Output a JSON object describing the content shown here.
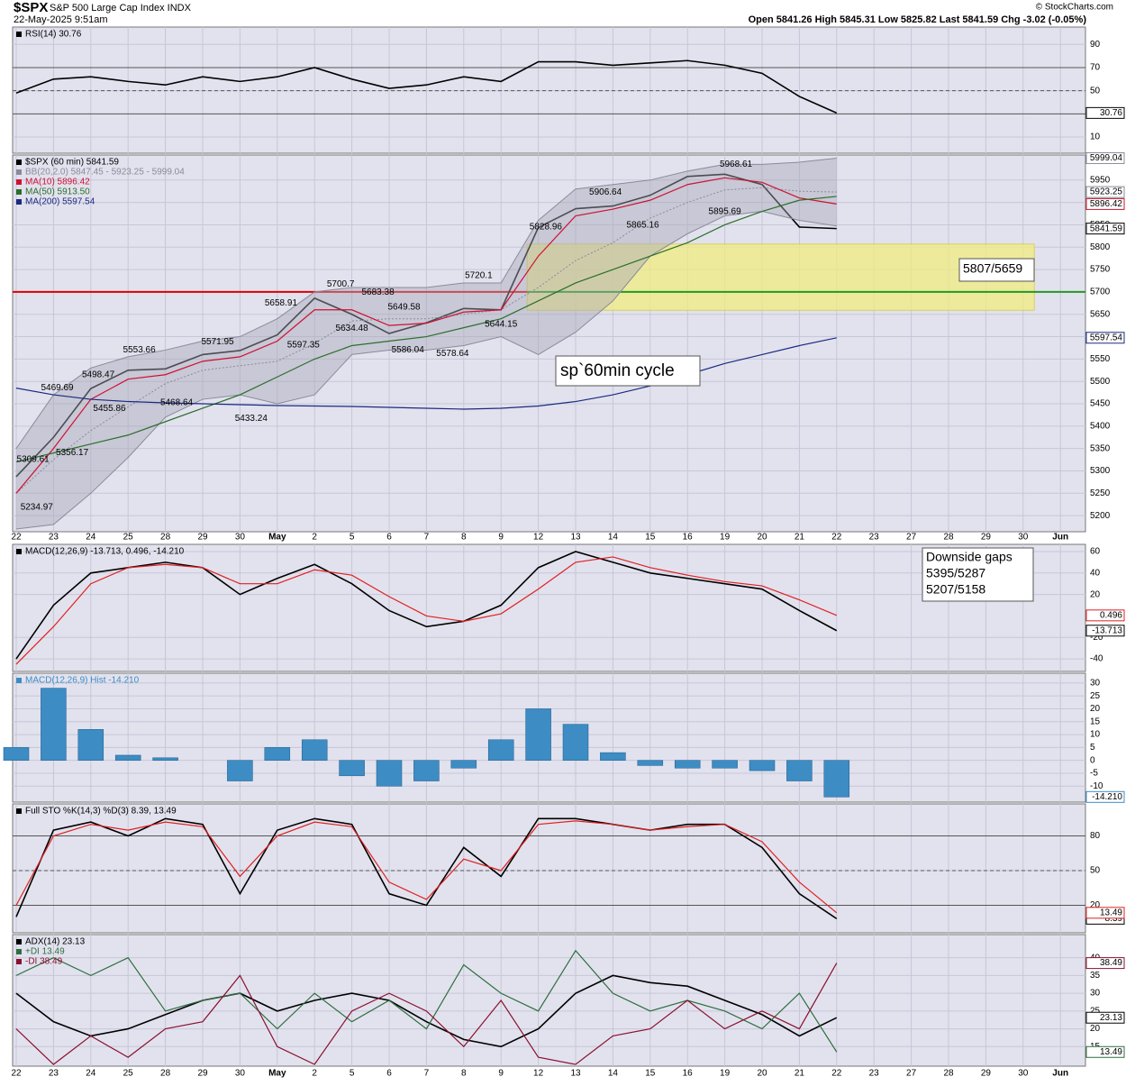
{
  "header": {
    "symbol": "$SPX",
    "name": "S&P 500 Large Cap Index INDX",
    "datetime": "22-May-2025 9:51am",
    "quote": "Open 5841.26 High 5845.31 Low 5825.82 Last 5841.59 Chg -3.02 (-0.05%)",
    "source": "© StockCharts.com"
  },
  "chart_data": [
    {
      "type": "line",
      "ylim": [
        -4,
        105
      ],
      "yticks": [
        10,
        50,
        70,
        90
      ],
      "hlines": [
        30,
        50,
        70
      ],
      "grid": true,
      "series": [
        {
          "name": "RSI(14) 30.76",
          "color": "#000000",
          "last_box": true,
          "values": [
            48,
            60,
            62,
            58,
            55,
            62,
            58,
            62,
            70,
            60,
            52,
            55,
            62,
            58,
            75,
            75,
            72,
            74,
            76,
            72,
            65,
            45,
            30.76,
            null,
            null,
            null,
            null,
            null,
            null
          ]
        }
      ]
    },
    {
      "type": "line",
      "ylim": [
        5164,
        6006
      ],
      "yticks": [
        5200,
        5250,
        5300,
        5350,
        5400,
        5450,
        5500,
        5550,
        5600,
        5650,
        5700,
        5750,
        5800,
        5850,
        5900,
        5950
      ],
      "grid": true,
      "categories": [
        "22",
        "23",
        "24",
        "25",
        "28",
        "29",
        "30",
        "May",
        "2",
        "5",
        "6",
        "7",
        "8",
        "9",
        "12",
        "13",
        "14",
        "15",
        "16",
        "19",
        "20",
        "21",
        "22",
        "23",
        "27",
        "28",
        "29",
        "30",
        "Jun"
      ],
      "hlines": [
        5700
      ],
      "hline_colors": [
        "#dd0000",
        "#229922"
      ],
      "zone": [
        5659,
        5807
      ],
      "zone_color": "#f0ec80",
      "series": [
        {
          "name": "$SPX (60 min) 5841.59",
          "color": "#000000",
          "last_box": true,
          "values": [
            5287,
            5375,
            5484,
            5525,
            5528,
            5560,
            5569,
            5604,
            5686,
            5650,
            5607,
            5631,
            5663,
            5660,
            5844,
            5886,
            5892,
            5916,
            5958,
            5963,
            5940,
            5845,
            5841.59,
            null,
            null,
            null,
            null,
            null,
            null
          ]
        },
        {
          "name": "BB(20,2.0) 5847.45 - 5923.25 - 5999.04",
          "color": "#8a8a9a",
          "last_box": [
            "upper",
            "middle"
          ],
          "upper": [
            5350,
            5470,
            5530,
            5555,
            5570,
            5590,
            5600,
            5640,
            5700,
            5710,
            5710,
            5710,
            5720,
            5720,
            5860,
            5930,
            5940,
            5950,
            5970,
            5985,
            5985,
            5990,
            5999.04,
            null,
            null,
            null,
            null,
            null,
            null
          ],
          "middle": [
            5250,
            5325,
            5390,
            5443,
            5495,
            5525,
            5535,
            5545,
            5585,
            5635,
            5640,
            5640,
            5650,
            5660,
            5710,
            5770,
            5810,
            5865,
            5900,
            5928,
            5933,
            5925,
            5923.25,
            null,
            null,
            null,
            null,
            null,
            null
          ],
          "lower": [
            5170,
            5180,
            5250,
            5330,
            5420,
            5460,
            5470,
            5450,
            5470,
            5560,
            5570,
            5570,
            5580,
            5600,
            5560,
            5610,
            5680,
            5780,
            5830,
            5870,
            5880,
            5860,
            5847.45,
            null,
            null,
            null,
            null,
            null,
            null
          ]
        },
        {
          "name": "MA(10) 5896.42",
          "color": "#d01030",
          "last_box": true,
          "values": [
            5250,
            5350,
            5460,
            5505,
            5515,
            5545,
            5555,
            5590,
            5660,
            5660,
            5625,
            5630,
            5655,
            5660,
            5780,
            5870,
            5885,
            5905,
            5940,
            5955,
            5945,
            5910,
            5896.42,
            null,
            null,
            null,
            null,
            null,
            null
          ]
        },
        {
          "name": "MA(50) 5913.50",
          "color": "#2a6e2a",
          "values": [
            5320,
            5340,
            5360,
            5380,
            5410,
            5440,
            5470,
            5510,
            5550,
            5580,
            5590,
            5600,
            5620,
            5640,
            5680,
            5720,
            5750,
            5780,
            5810,
            5850,
            5880,
            5905,
            5913.5,
            null,
            null,
            null,
            null,
            null,
            null
          ]
        },
        {
          "name": "MA(200) 5597.54",
          "color": "#1a2a80",
          "last_box": true,
          "values": [
            5485,
            5470,
            5460,
            5455,
            5452,
            5450,
            5448,
            5446,
            5445,
            5444,
            5442,
            5440,
            5438,
            5440,
            5445,
            5455,
            5470,
            5490,
            5515,
            5540,
            5560,
            5580,
            5597.54,
            null,
            null,
            null,
            null,
            null,
            null
          ]
        }
      ],
      "price_labels": [
        5309.61,
        5234.97,
        5469.69,
        5356.17,
        5498.47,
        5455.86,
        5553.66,
        5468.64,
        5571.95,
        5433.24,
        5658.91,
        5597.35,
        5700.7,
        5634.48,
        5683.38,
        5649.58,
        5586.04,
        5578.64,
        5720.1,
        5644.15,
        5828.96,
        5906.64,
        5865.16,
        5895.69,
        5968.61
      ],
      "annotations": [
        "sp`60min cycle",
        "5807/5659"
      ]
    },
    {
      "type": "line",
      "ylim": [
        -51.7,
        66.7
      ],
      "yticks": [
        -40,
        -20,
        20,
        40,
        60
      ],
      "grid": true,
      "series": [
        {
          "name": "MACD(12,26,9) -13.713, 0.496, -14.210",
          "color": "#000000",
          "last_box": true,
          "values": [
            -40,
            10,
            40,
            45,
            50,
            45,
            20,
            35,
            48,
            30,
            5,
            -10,
            -5,
            10,
            45,
            60,
            50,
            40,
            35,
            30,
            25,
            5,
            -13.713,
            null,
            null,
            null,
            null,
            null,
            null
          ]
        },
        {
          "color": "#e02020",
          "last_box": true,
          "values": [
            -45,
            -10,
            30,
            45,
            48,
            45,
            30,
            30,
            43,
            38,
            18,
            0,
            -5,
            2,
            25,
            50,
            55,
            45,
            38,
            32,
            28,
            15,
            0.496,
            null,
            null,
            null,
            null,
            null,
            null
          ]
        }
      ],
      "annotations": [
        "Downside gaps",
        "5395/5287",
        "5207/5158"
      ]
    },
    {
      "type": "bar",
      "ylim": [
        -16.2,
        33.8
      ],
      "yticks": [
        -10,
        -5,
        0,
        5,
        10,
        15,
        20,
        25,
        30
      ],
      "grid": true,
      "series": [
        {
          "name": "MACD(12,26,9) Hist -14.210",
          "color": "#3d8cc4",
          "last_box": true,
          "last_label": "-14.210",
          "values": [
            5,
            28,
            12,
            2,
            1,
            0,
            -8,
            5,
            8,
            -6,
            -10,
            -8,
            -3,
            8,
            20,
            14,
            3,
            -2,
            -3,
            -3,
            -4,
            -8,
            -14.21,
            null,
            null,
            null,
            null,
            null,
            null
          ]
        }
      ]
    },
    {
      "type": "line",
      "ylim": [
        -3.8,
        107.7
      ],
      "yticks": [
        20,
        50,
        80
      ],
      "hlines": [
        20,
        50,
        80
      ],
      "grid": true,
      "series": [
        {
          "name": "Full STO %K(14,3) %D(3) 8.39, 13.49",
          "color": "#000000",
          "last_box": true,
          "values": [
            10,
            85,
            92,
            80,
            95,
            90,
            30,
            85,
            95,
            90,
            30,
            20,
            70,
            45,
            95,
            95,
            90,
            85,
            90,
            90,
            70,
            30,
            8.39,
            null,
            null,
            null,
            null,
            null,
            null
          ]
        },
        {
          "color": "#e02020",
          "last_box": true,
          "values": [
            20,
            80,
            90,
            85,
            92,
            88,
            45,
            80,
            92,
            88,
            40,
            25,
            60,
            50,
            90,
            93,
            90,
            85,
            88,
            90,
            75,
            40,
            13.49,
            null,
            null,
            null,
            null,
            null,
            null
          ]
        }
      ]
    },
    {
      "type": "line",
      "ylim": [
        9.5,
        46.5
      ],
      "yticks": [
        15,
        20,
        25,
        30,
        35,
        40
      ],
      "grid": true,
      "series": [
        {
          "name": "ADX(14) 23.13",
          "color": "#000000",
          "last_box": true,
          "values": [
            30,
            22,
            18,
            20,
            24,
            28,
            30,
            25,
            28,
            30,
            28,
            22,
            17,
            15,
            20,
            30,
            35,
            33,
            32,
            28,
            24,
            18,
            23.13,
            null,
            null,
            null,
            null,
            null,
            null
          ]
        },
        {
          "name": "+DI 13.49",
          "color": "#2e6e3e",
          "last_box": true,
          "values": [
            35,
            40,
            35,
            40,
            25,
            28,
            30,
            20,
            30,
            22,
            28,
            20,
            38,
            30,
            25,
            42,
            30,
            25,
            28,
            25,
            20,
            30,
            13.49,
            null,
            null,
            null,
            null,
            null,
            null
          ]
        },
        {
          "name": "-DI 38.49",
          "color": "#8a1030",
          "last_box": true,
          "values": [
            20,
            10,
            18,
            12,
            20,
            22,
            35,
            15,
            10,
            25,
            30,
            25,
            15,
            28,
            12,
            10,
            18,
            20,
            28,
            20,
            25,
            20,
            38.49,
            null,
            null,
            null,
            null,
            null,
            null
          ]
        }
      ]
    }
  ]
}
